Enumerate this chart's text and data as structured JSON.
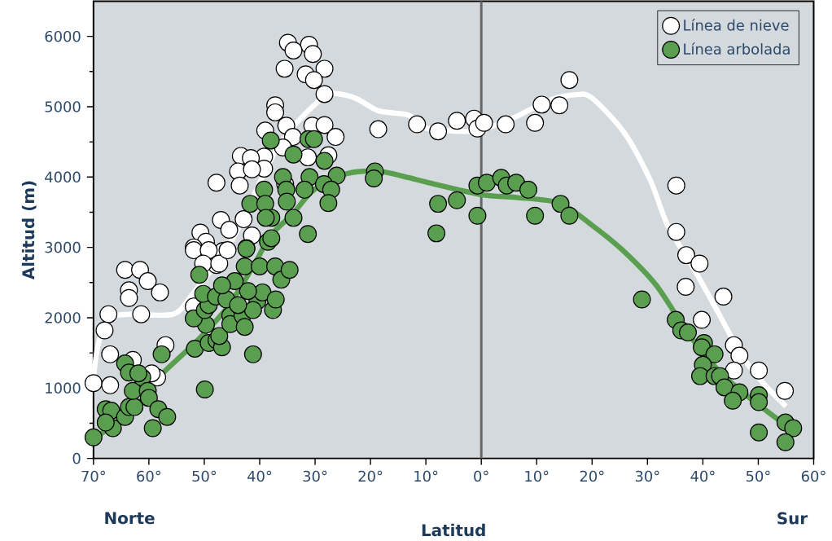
{
  "chart_data": {
    "type": "scatter",
    "xlabel": "Latitud",
    "ylabel": "Altitud (m)",
    "annotations": [
      "Norte",
      "Sur"
    ],
    "xlim": [
      -70,
      60
    ],
    "ylim": [
      0,
      6500
    ],
    "xticks": [
      {
        "value": -70,
        "label": "70°"
      },
      {
        "value": -60,
        "label": "60°"
      },
      {
        "value": -50,
        "label": "50°"
      },
      {
        "value": -40,
        "label": "40°"
      },
      {
        "value": -30,
        "label": "30°"
      },
      {
        "value": -20,
        "label": "20°"
      },
      {
        "value": -10,
        "label": "10°"
      },
      {
        "value": 0,
        "label": "0°"
      },
      {
        "value": 10,
        "label": "10°"
      },
      {
        "value": 20,
        "label": "20°"
      },
      {
        "value": 30,
        "label": "30°"
      },
      {
        "value": 40,
        "label": "40°"
      },
      {
        "value": 50,
        "label": "50°"
      },
      {
        "value": 60,
        "label": "60°"
      }
    ],
    "yticks": [
      0,
      1000,
      2000,
      3000,
      4000,
      5000,
      6000
    ],
    "legend": "top right",
    "ref_lines": [
      {
        "axis": "x",
        "value": 0,
        "color": "#666666"
      }
    ],
    "series": [
      {
        "name": "Línea de nieve",
        "marker": "circle",
        "color": "#ffffff",
        "x": [
          -34.9,
          -31.1,
          -33.9,
          -30.4,
          -35.5,
          -31.7,
          -28.3,
          -30.2,
          -28.3,
          -37.2,
          -37.2,
          -39,
          -35.2,
          -34,
          -30.5,
          -28.3,
          -26.3,
          -31.3,
          -27.6,
          -35.8,
          -39.2,
          -43.4,
          -41.6,
          -39.2,
          -43.9,
          -41.4,
          -47.8,
          -43.6,
          -35.4,
          -47,
          -42.9,
          -45.5,
          -50.7,
          -41.4,
          -49.7,
          -51.9,
          -46.6,
          -47.8,
          -18.6,
          -11.6,
          -7.8,
          -4.4,
          -1.3,
          -0.7,
          0.5,
          4.4,
          9.7,
          10.9,
          14.1,
          15.9,
          35.2,
          35.2,
          37.0,
          39.4,
          36.9,
          43.7,
          39.8,
          45.6,
          46.6,
          45.6,
          50.1,
          54.8,
          -64.3,
          -61.6,
          -63.6,
          -63.6,
          -60.2,
          -58,
          -67.3,
          -61.4,
          -68,
          -67,
          -70,
          -67,
          -62.9,
          -57,
          -58.5,
          -59.5,
          -51.9,
          -49.2,
          -51.9,
          -50.2,
          -47.3,
          -45.8
        ],
        "values": [
          5910,
          5880,
          5800,
          5750,
          5540,
          5460,
          5540,
          5380,
          5180,
          5020,
          4920,
          4660,
          4730,
          4570,
          4730,
          4740,
          4570,
          4280,
          4310,
          4420,
          4290,
          4300,
          4270,
          4120,
          4080,
          4110,
          3920,
          3880,
          3900,
          3390,
          3400,
          3250,
          3210,
          3170,
          3080,
          3000,
          2950,
          2750,
          4680,
          4750,
          4650,
          4800,
          4830,
          4690,
          4770,
          4750,
          4770,
          5030,
          5020,
          5380,
          3880,
          3220,
          2890,
          2770,
          2440,
          2300,
          1970,
          1610,
          1460,
          1250,
          1250,
          960,
          2680,
          2680,
          2390,
          2280,
          2520,
          2360,
          2050,
          2050,
          1820,
          1480,
          1070,
          1040,
          1400,
          1610,
          1150,
          1210,
          2960,
          2960,
          2160,
          2770,
          2770,
          2960
        ]
      },
      {
        "name": "Línea arbolada",
        "marker": "circle",
        "color": "#5a9e4f",
        "x": [
          -70,
          -67.8,
          -66.8,
          -66.5,
          -67.8,
          -64.3,
          -63.6,
          -62.6,
          -62.9,
          -64.3,
          -63.6,
          -61.2,
          -61.9,
          -60.2,
          -60,
          -59.3,
          -58.3,
          -56.7,
          -57.7,
          -49.9,
          -51.7,
          -49.2,
          -47.8,
          -46.8,
          -47.3,
          -49.7,
          -51.9,
          -49.9,
          -49.2,
          -50.2,
          -47.9,
          -46,
          -45.3,
          -45.3,
          -43.1,
          -42.7,
          -41.2,
          -40.4,
          -39.5,
          -42.1,
          -44.5,
          -46.8,
          -50.9,
          -42.7,
          -40,
          -37.2,
          -36.1,
          -34.6,
          -37.6,
          -37.1,
          -41.2,
          -43.9,
          -42.4,
          -38.5,
          -38,
          -33.9,
          -31.2,
          -30.2,
          -28.3,
          -26.1,
          -31,
          -35.8,
          -39.2,
          -35.2,
          -31.9,
          -28.4,
          -27.1,
          -27.6,
          -41.7,
          -39,
          -35.1,
          -37.9,
          -33.9,
          -38.9,
          -37.9,
          -31.3,
          -42.4,
          -19.2,
          -19.4,
          -7.8,
          -4.4,
          -8.1,
          -0.7,
          1,
          3.6,
          4.6,
          6.3,
          8.5,
          -0.7,
          9.7,
          14.3,
          15.9,
          29,
          35.1,
          36.1,
          37.3,
          40.2,
          39.8,
          42.1,
          40,
          39.5,
          42.1,
          43.1,
          43.9,
          46.6,
          45.4,
          50.1,
          50.1,
          50.1,
          54.9,
          56.3,
          54.9
        ],
        "values": [
          300,
          700,
          680,
          430,
          510,
          590,
          730,
          730,
          960,
          1350,
          1220,
          1150,
          1210,
          960,
          860,
          430,
          700,
          590,
          1480,
          980,
          1560,
          1640,
          1680,
          1580,
          1740,
          1900,
          1990,
          2110,
          2180,
          2340,
          2300,
          2260,
          2030,
          1910,
          2030,
          1870,
          1480,
          2240,
          2360,
          2380,
          2520,
          2460,
          2610,
          2730,
          2730,
          2730,
          2540,
          2680,
          2110,
          2260,
          2110,
          2180,
          2990,
          3080,
          4520,
          4320,
          4540,
          4540,
          4230,
          4020,
          4000,
          4000,
          3820,
          3820,
          3820,
          3900,
          3820,
          3630,
          3620,
          3620,
          3650,
          3420,
          3420,
          3420,
          3130,
          3190,
          2980,
          4080,
          3980,
          3620,
          3670,
          3200,
          3880,
          3920,
          3990,
          3880,
          3920,
          3820,
          3450,
          3450,
          3620,
          3450,
          2260,
          1970,
          1820,
          1790,
          1640,
          1580,
          1480,
          1330,
          1170,
          1170,
          1170,
          1010,
          940,
          820,
          900,
          800,
          370,
          510,
          430,
          230
        ]
      },
      {
        "type": "line",
        "marker": "none",
        "color": "#ffffff",
        "x": [
          -70,
          -69.2,
          -67.3,
          -63.4,
          -55.6,
          -52.1,
          -45,
          -38,
          -34,
          -28.3,
          -25.5,
          -22.4,
          -18.5,
          -13.1,
          -10.6,
          -7.3,
          -3.4,
          0,
          6.3,
          12.2,
          17,
          19.9,
          25.8,
          30.6,
          33.6,
          38.4,
          42.8,
          47.2,
          51.1,
          55
        ],
        "values": [
          1130,
          1600,
          1990,
          2050,
          2050,
          2340,
          3100,
          4250,
          4710,
          5150,
          5180,
          5110,
          4940,
          4880,
          4710,
          4670,
          4650,
          4670,
          4860,
          5090,
          5170,
          5130,
          4630,
          3940,
          3320,
          2690,
          2070,
          1440,
          1050,
          740
        ]
      },
      {
        "type": "line",
        "marker": "none",
        "color": "#5a9e4f",
        "x": [
          -70,
          -62.4,
          -57.5,
          -51.7,
          -45.8,
          -40.9,
          -38,
          -34,
          -30.2,
          -24.2,
          -18.4,
          -13,
          -10,
          0,
          6.3,
          14.1,
          19.9,
          25.8,
          31.6,
          37.5,
          43.3,
          49.1,
          55
        ],
        "values": [
          270,
          740,
          1210,
          1640,
          2150,
          2770,
          3170,
          3480,
          3820,
          4050,
          4080,
          3990,
          3930,
          3750,
          3710,
          3630,
          3320,
          2940,
          2460,
          1760,
          1210,
          820,
          470
        ]
      }
    ]
  }
}
